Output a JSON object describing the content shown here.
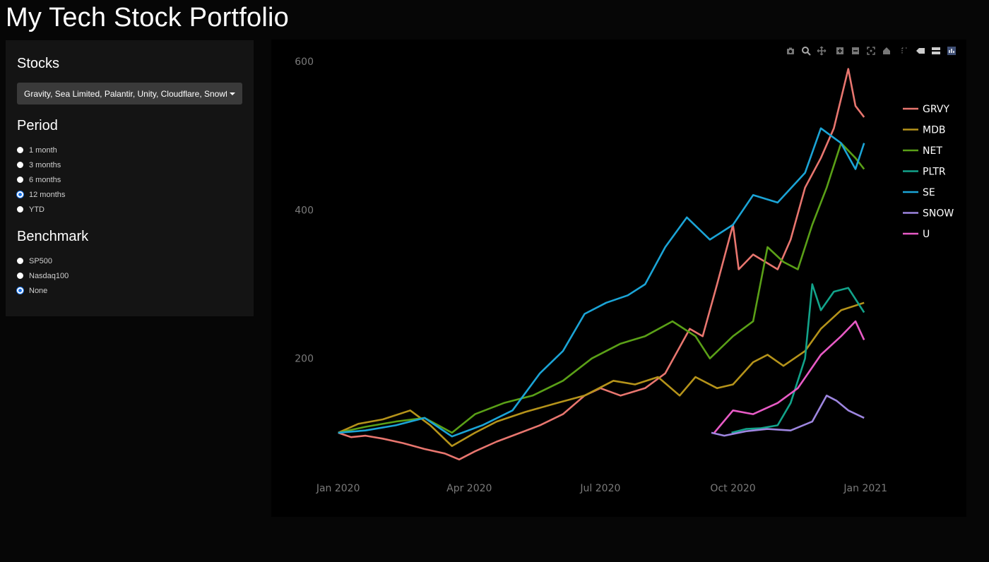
{
  "app_title": "My Tech Stock Portfolio",
  "stocks": {
    "title": "Stocks",
    "selected_text": "Gravity, Sea Limited, Palantir, Unity, Cloudflare, Snowflake, MongoDB"
  },
  "period": {
    "title": "Period",
    "options": [
      "1 month",
      "3 months",
      "6 months",
      "12 months",
      "YTD"
    ],
    "selected_index": 3
  },
  "benchmark": {
    "title": "Benchmark",
    "options": [
      "SP500",
      "Nasdaq100",
      "None"
    ],
    "selected_index": 2
  },
  "modebar": [
    "camera-icon",
    "zoom-icon",
    "pan-icon",
    "zoom-in-icon",
    "zoom-out-icon",
    "autoscale-icon",
    "reset-axes-icon",
    "spike-lines-icon",
    "hover-closest-icon",
    "hover-compare-icon",
    "plotly-logo-icon"
  ],
  "chart_data": {
    "type": "line",
    "xlabel": "",
    "ylabel": "",
    "x_ticks": [
      "Jan 2020",
      "Apr 2020",
      "Jul 2020",
      "Oct 2020",
      "Jan 2021"
    ],
    "y_ticks": [
      200,
      400,
      600
    ],
    "ylim": [
      40,
      620
    ],
    "xlim": [
      "2019-12-15",
      "2021-01-20"
    ],
    "grid": false,
    "legend_position": "right",
    "series": [
      {
        "name": "GRVY",
        "color": "#e8766f",
        "points": [
          [
            "2020-01-01",
            100
          ],
          [
            "2020-01-10",
            94
          ],
          [
            "2020-01-20",
            96
          ],
          [
            "2020-02-01",
            92
          ],
          [
            "2020-02-15",
            86
          ],
          [
            "2020-03-01",
            78
          ],
          [
            "2020-03-15",
            72
          ],
          [
            "2020-03-25",
            64
          ],
          [
            "2020-04-05",
            75
          ],
          [
            "2020-04-20",
            88
          ],
          [
            "2020-05-01",
            96
          ],
          [
            "2020-05-20",
            110
          ],
          [
            "2020-06-05",
            125
          ],
          [
            "2020-06-20",
            150
          ],
          [
            "2020-07-01",
            160
          ],
          [
            "2020-07-15",
            150
          ],
          [
            "2020-08-01",
            160
          ],
          [
            "2020-08-15",
            180
          ],
          [
            "2020-09-01",
            240
          ],
          [
            "2020-09-10",
            230
          ],
          [
            "2020-09-20",
            300
          ],
          [
            "2020-10-01",
            380
          ],
          [
            "2020-10-05",
            320
          ],
          [
            "2020-10-15",
            340
          ],
          [
            "2020-11-01",
            320
          ],
          [
            "2020-11-10",
            360
          ],
          [
            "2020-11-20",
            430
          ],
          [
            "2020-12-01",
            470
          ],
          [
            "2020-12-10",
            510
          ],
          [
            "2020-12-20",
            590
          ],
          [
            "2020-12-25",
            540
          ],
          [
            "2020-12-31",
            525
          ]
        ]
      },
      {
        "name": "MDB",
        "color": "#b5931a",
        "points": [
          [
            "2020-01-01",
            100
          ],
          [
            "2020-01-15",
            112
          ],
          [
            "2020-02-01",
            118
          ],
          [
            "2020-02-20",
            130
          ],
          [
            "2020-03-05",
            110
          ],
          [
            "2020-03-20",
            82
          ],
          [
            "2020-04-05",
            100
          ],
          [
            "2020-04-20",
            115
          ],
          [
            "2020-05-10",
            128
          ],
          [
            "2020-06-01",
            140
          ],
          [
            "2020-06-20",
            150
          ],
          [
            "2020-07-10",
            170
          ],
          [
            "2020-07-25",
            165
          ],
          [
            "2020-08-10",
            175
          ],
          [
            "2020-08-25",
            150
          ],
          [
            "2020-09-05",
            175
          ],
          [
            "2020-09-20",
            160
          ],
          [
            "2020-10-01",
            165
          ],
          [
            "2020-10-15",
            195
          ],
          [
            "2020-10-25",
            205
          ],
          [
            "2020-11-05",
            190
          ],
          [
            "2020-11-20",
            210
          ],
          [
            "2020-12-01",
            240
          ],
          [
            "2020-12-15",
            265
          ],
          [
            "2020-12-31",
            275
          ]
        ]
      },
      {
        "name": "NET",
        "color": "#5aa017",
        "points": [
          [
            "2020-01-01",
            100
          ],
          [
            "2020-01-20",
            108
          ],
          [
            "2020-02-10",
            115
          ],
          [
            "2020-03-01",
            120
          ],
          [
            "2020-03-20",
            100
          ],
          [
            "2020-04-05",
            125
          ],
          [
            "2020-04-25",
            140
          ],
          [
            "2020-05-15",
            150
          ],
          [
            "2020-06-05",
            170
          ],
          [
            "2020-06-25",
            200
          ],
          [
            "2020-07-15",
            220
          ],
          [
            "2020-08-01",
            230
          ],
          [
            "2020-08-20",
            250
          ],
          [
            "2020-09-05",
            230
          ],
          [
            "2020-09-15",
            200
          ],
          [
            "2020-10-01",
            230
          ],
          [
            "2020-10-15",
            250
          ],
          [
            "2020-10-25",
            350
          ],
          [
            "2020-11-05",
            330
          ],
          [
            "2020-11-15",
            320
          ],
          [
            "2020-11-25",
            380
          ],
          [
            "2020-12-05",
            430
          ],
          [
            "2020-12-15",
            490
          ],
          [
            "2020-12-25",
            470
          ],
          [
            "2020-12-31",
            455
          ]
        ]
      },
      {
        "name": "PLTR",
        "color": "#12a38a",
        "points": [
          [
            "2020-09-30",
            100
          ],
          [
            "2020-10-10",
            105
          ],
          [
            "2020-10-20",
            106
          ],
          [
            "2020-11-01",
            110
          ],
          [
            "2020-11-10",
            140
          ],
          [
            "2020-11-20",
            200
          ],
          [
            "2020-11-25",
            300
          ],
          [
            "2020-12-01",
            265
          ],
          [
            "2020-12-10",
            290
          ],
          [
            "2020-12-20",
            295
          ],
          [
            "2020-12-31",
            262
          ]
        ]
      },
      {
        "name": "SE",
        "color": "#1ba4d6",
        "points": [
          [
            "2020-01-01",
            100
          ],
          [
            "2020-01-20",
            103
          ],
          [
            "2020-02-10",
            110
          ],
          [
            "2020-03-01",
            120
          ],
          [
            "2020-03-20",
            95
          ],
          [
            "2020-04-10",
            110
          ],
          [
            "2020-05-01",
            130
          ],
          [
            "2020-05-20",
            180
          ],
          [
            "2020-06-05",
            210
          ],
          [
            "2020-06-20",
            260
          ],
          [
            "2020-07-05",
            275
          ],
          [
            "2020-07-20",
            285
          ],
          [
            "2020-08-01",
            300
          ],
          [
            "2020-08-15",
            350
          ],
          [
            "2020-08-30",
            390
          ],
          [
            "2020-09-15",
            360
          ],
          [
            "2020-10-01",
            380
          ],
          [
            "2020-10-15",
            420
          ],
          [
            "2020-11-01",
            410
          ],
          [
            "2020-11-20",
            450
          ],
          [
            "2020-12-01",
            510
          ],
          [
            "2020-12-15",
            490
          ],
          [
            "2020-12-25",
            455
          ],
          [
            "2020-12-31",
            490
          ]
        ]
      },
      {
        "name": "SNOW",
        "color": "#9e86e0",
        "points": [
          [
            "2020-09-16",
            100
          ],
          [
            "2020-09-25",
            96
          ],
          [
            "2020-10-10",
            102
          ],
          [
            "2020-10-25",
            105
          ],
          [
            "2020-11-10",
            103
          ],
          [
            "2020-11-25",
            115
          ],
          [
            "2020-12-05",
            150
          ],
          [
            "2020-12-12",
            143
          ],
          [
            "2020-12-20",
            130
          ],
          [
            "2020-12-31",
            120
          ]
        ]
      },
      {
        "name": "U",
        "color": "#e85bc6",
        "points": [
          [
            "2020-09-18",
            100
          ],
          [
            "2020-10-01",
            130
          ],
          [
            "2020-10-15",
            125
          ],
          [
            "2020-11-01",
            140
          ],
          [
            "2020-11-15",
            160
          ],
          [
            "2020-12-01",
            205
          ],
          [
            "2020-12-15",
            230
          ],
          [
            "2020-12-25",
            250
          ],
          [
            "2020-12-31",
            225
          ]
        ]
      }
    ]
  }
}
